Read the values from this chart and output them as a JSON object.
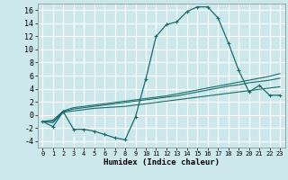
{
  "xlabel": "Humidex (Indice chaleur)",
  "bg_color": "#cde8ec",
  "grid_color": "#ffffff",
  "line_color": "#1a6b6b",
  "xlim": [
    -0.5,
    23.5
  ],
  "ylim": [
    -5,
    17
  ],
  "xticks": [
    0,
    1,
    2,
    3,
    4,
    5,
    6,
    7,
    8,
    9,
    10,
    11,
    12,
    13,
    14,
    15,
    16,
    17,
    18,
    19,
    20,
    21,
    22,
    23
  ],
  "yticks": [
    -4,
    -2,
    0,
    2,
    4,
    6,
    8,
    10,
    12,
    14,
    16
  ],
  "series_main": {
    "x": [
      0,
      1,
      2,
      3,
      4,
      5,
      6,
      7,
      8,
      9,
      10,
      11,
      12,
      13,
      14,
      15,
      16,
      17,
      18,
      19,
      20,
      21,
      22,
      23
    ],
    "y": [
      -1,
      -1.8,
      0.5,
      -2.2,
      -2.2,
      -2.5,
      -3,
      -3.5,
      -3.8,
      -0.3,
      5.5,
      12,
      13.8,
      14.2,
      15.8,
      16.5,
      16.5,
      14.8,
      11,
      6.8,
      3.5,
      4.5,
      3,
      3
    ]
  },
  "series_trend1": {
    "x": [
      0,
      1,
      2,
      3,
      4,
      5,
      6,
      7,
      8,
      9,
      10,
      11,
      12,
      13,
      14,
      15,
      16,
      17,
      18,
      19,
      20,
      21,
      22,
      23
    ],
    "y": [
      -1,
      -1.2,
      0.4,
      0.6,
      0.8,
      1.0,
      1.1,
      1.2,
      1.3,
      1.5,
      1.7,
      1.9,
      2.1,
      2.3,
      2.5,
      2.7,
      2.9,
      3.1,
      3.3,
      3.5,
      3.7,
      3.9,
      4.1,
      4.3
    ]
  },
  "series_trend2": {
    "x": [
      0,
      1,
      2,
      3,
      4,
      5,
      6,
      7,
      8,
      9,
      10,
      11,
      12,
      13,
      14,
      15,
      16,
      17,
      18,
      19,
      20,
      21,
      22,
      23
    ],
    "y": [
      -1,
      -1.0,
      0.5,
      0.9,
      1.1,
      1.3,
      1.5,
      1.7,
      1.9,
      2.1,
      2.3,
      2.5,
      2.7,
      2.9,
      3.2,
      3.5,
      3.8,
      4.1,
      4.4,
      4.6,
      4.9,
      5.1,
      5.3,
      5.6
    ]
  },
  "series_trend3": {
    "x": [
      0,
      1,
      2,
      3,
      4,
      5,
      6,
      7,
      8,
      9,
      10,
      11,
      12,
      13,
      14,
      15,
      16,
      17,
      18,
      19,
      20,
      21,
      22,
      23
    ],
    "y": [
      -1,
      -0.8,
      0.6,
      1.1,
      1.3,
      1.5,
      1.7,
      1.9,
      2.1,
      2.3,
      2.5,
      2.7,
      2.9,
      3.2,
      3.5,
      3.8,
      4.1,
      4.4,
      4.7,
      5.0,
      5.3,
      5.6,
      5.9,
      6.3
    ]
  }
}
